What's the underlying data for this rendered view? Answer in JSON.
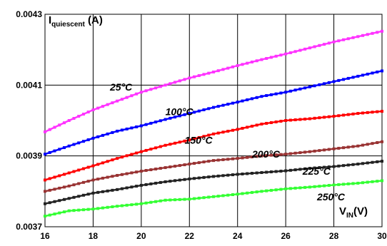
{
  "chart_data": {
    "type": "line",
    "title": "",
    "ylabel": {
      "main": "I",
      "sub": "quiescent",
      "unit": " (A)"
    },
    "xlabel": {
      "main": "V",
      "sub": "IN",
      "unit": "(V)"
    },
    "xlim": [
      16,
      30
    ],
    "ylim": [
      0.0037,
      0.0043
    ],
    "x_ticks": [
      16,
      18,
      20,
      22,
      24,
      26,
      28,
      30
    ],
    "x_tick_labels": [
      "16",
      "18",
      "20",
      "22",
      "24",
      "26",
      "28",
      "30"
    ],
    "y_ticks": [
      0.0037,
      0.0039,
      0.0041,
      0.0043
    ],
    "y_tick_labels": [
      "0.0037",
      "0.0039",
      "0.0041",
      "0.0043"
    ],
    "grid": true,
    "legend": "none",
    "series": [
      {
        "name": "25°C",
        "color": "#ff33ff",
        "label_at": [
          18.7,
          0.004085
        ],
        "points": [
          [
            16,
            0.003968
          ],
          [
            17,
            0.004
          ],
          [
            18,
            0.00403
          ],
          [
            19,
            0.004055
          ],
          [
            20,
            0.00408
          ],
          [
            21,
            0.0041
          ],
          [
            22,
            0.00412
          ],
          [
            23,
            0.004137
          ],
          [
            24,
            0.004155
          ],
          [
            25,
            0.004172
          ],
          [
            26,
            0.004188
          ],
          [
            27,
            0.004205
          ],
          [
            28,
            0.004222
          ],
          [
            29,
            0.004237
          ],
          [
            30,
            0.004252
          ]
        ]
      },
      {
        "name": "100°C",
        "color": "#0000ff",
        "label_at": [
          21.0,
          0.004015
        ],
        "points": [
          [
            16,
            0.003905
          ],
          [
            17,
            0.003928
          ],
          [
            18,
            0.00395
          ],
          [
            19,
            0.00397
          ],
          [
            20,
            0.003985
          ],
          [
            21,
            0.004003
          ],
          [
            22,
            0.00402
          ],
          [
            23,
            0.004037
          ],
          [
            24,
            0.004052
          ],
          [
            25,
            0.004068
          ],
          [
            26,
            0.00408
          ],
          [
            27,
            0.004095
          ],
          [
            28,
            0.00411
          ],
          [
            29,
            0.004125
          ],
          [
            30,
            0.00414
          ]
        ]
      },
      {
        "name": "150°C",
        "color": "#ff0000",
        "label_at": [
          21.8,
          0.003935
        ],
        "points": [
          [
            16,
            0.003832
          ],
          [
            17,
            0.003852
          ],
          [
            18,
            0.003872
          ],
          [
            19,
            0.003893
          ],
          [
            20,
            0.003912
          ],
          [
            21,
            0.00393
          ],
          [
            22,
            0.003945
          ],
          [
            23,
            0.003962
          ],
          [
            24,
            0.003975
          ],
          [
            25,
            0.00399
          ],
          [
            26,
            0.004
          ],
          [
            27,
            0.004005
          ],
          [
            28,
            0.004012
          ],
          [
            29,
            0.00402
          ],
          [
            30,
            0.004026
          ]
        ]
      },
      {
        "name": "200°C",
        "color": "#993333",
        "label_at": [
          24.6,
          0.003895
        ],
        "points": [
          [
            16,
            0.0038
          ],
          [
            17,
            0.003815
          ],
          [
            18,
            0.003832
          ],
          [
            19,
            0.003845
          ],
          [
            20,
            0.003857
          ],
          [
            21,
            0.003867
          ],
          [
            22,
            0.003877
          ],
          [
            23,
            0.003887
          ],
          [
            24,
            0.003893
          ],
          [
            25,
            0.0039
          ],
          [
            26,
            0.003905
          ],
          [
            27,
            0.003912
          ],
          [
            28,
            0.00392
          ],
          [
            29,
            0.003928
          ],
          [
            30,
            0.00394
          ]
        ]
      },
      {
        "name": "225°C",
        "color": "#222222",
        "label_at": [
          26.7,
          0.003847
        ],
        "points": [
          [
            16,
            0.003765
          ],
          [
            17,
            0.00378
          ],
          [
            18,
            0.003795
          ],
          [
            19,
            0.003805
          ],
          [
            20,
            0.003817
          ],
          [
            21,
            0.003827
          ],
          [
            22,
            0.003835
          ],
          [
            23,
            0.003842
          ],
          [
            24,
            0.003848
          ],
          [
            25,
            0.003853
          ],
          [
            26,
            0.003858
          ],
          [
            27,
            0.003865
          ],
          [
            28,
            0.00387
          ],
          [
            29,
            0.003877
          ],
          [
            30,
            0.003885
          ]
        ]
      },
      {
        "name": "250°C",
        "color": "#33ff33",
        "label_at": [
          27.3,
          0.003775
        ],
        "points": [
          [
            16,
            0.00373
          ],
          [
            17,
            0.003745
          ],
          [
            18,
            0.00375
          ],
          [
            19,
            0.003758
          ],
          [
            20,
            0.003765
          ],
          [
            21,
            0.003775
          ],
          [
            22,
            0.003778
          ],
          [
            23,
            0.003785
          ],
          [
            24,
            0.003792
          ],
          [
            25,
            0.0038
          ],
          [
            26,
            0.003807
          ],
          [
            27,
            0.003812
          ],
          [
            28,
            0.003818
          ],
          [
            29,
            0.003823
          ],
          [
            30,
            0.00383
          ]
        ]
      }
    ]
  }
}
